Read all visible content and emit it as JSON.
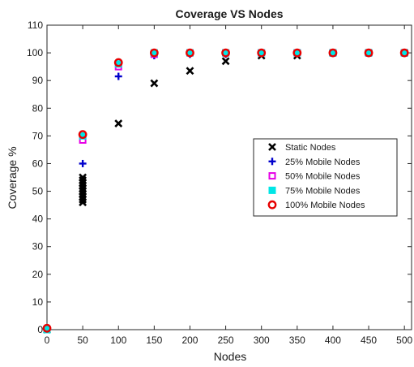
{
  "chart_data": {
    "type": "scatter",
    "title": "Coverage VS Nodes",
    "xlabel": "Nodes",
    "ylabel": "Coverage %",
    "xlim": [
      0,
      510
    ],
    "ylim": [
      0,
      110
    ],
    "xticks": [
      0,
      50,
      100,
      150,
      200,
      250,
      300,
      350,
      400,
      450,
      500
    ],
    "yticks": [
      0,
      10,
      20,
      30,
      40,
      50,
      60,
      70,
      80,
      90,
      100,
      110
    ],
    "grid": false,
    "legend_position": "center-right",
    "series": [
      {
        "name": "Static Nodes",
        "marker": "x",
        "color": "#000000",
        "points": [
          [
            0,
            0
          ],
          [
            50,
            46
          ],
          [
            50,
            47
          ],
          [
            50,
            48
          ],
          [
            50,
            49
          ],
          [
            50,
            50
          ],
          [
            50,
            51
          ],
          [
            50,
            52
          ],
          [
            50,
            53
          ],
          [
            50,
            54
          ],
          [
            50,
            55
          ],
          [
            100,
            74.5
          ],
          [
            150,
            89
          ],
          [
            200,
            93.5
          ],
          [
            250,
            97
          ],
          [
            300,
            99
          ],
          [
            350,
            99
          ],
          [
            400,
            100
          ],
          [
            450,
            100
          ],
          [
            500,
            100
          ]
        ]
      },
      {
        "name": "25%  Mobile Nodes",
        "marker": "plus",
        "color": "#0000cc",
        "points": [
          [
            0,
            0
          ],
          [
            50,
            60
          ],
          [
            100,
            91.5
          ],
          [
            150,
            99
          ],
          [
            200,
            99.5
          ],
          [
            250,
            99.5
          ],
          [
            300,
            100
          ],
          [
            350,
            100
          ],
          [
            400,
            100
          ],
          [
            450,
            100
          ],
          [
            500,
            100
          ]
        ]
      },
      {
        "name": "50%  Mobile Nodes",
        "marker": "square",
        "color": "#e600e6",
        "points": [
          [
            0,
            0
          ],
          [
            50,
            68.5
          ],
          [
            100,
            95
          ],
          [
            150,
            99.5
          ],
          [
            200,
            100
          ],
          [
            250,
            100
          ],
          [
            300,
            100
          ],
          [
            350,
            100
          ],
          [
            400,
            100
          ],
          [
            450,
            100
          ],
          [
            500,
            100
          ]
        ]
      },
      {
        "name": "75%  Mobile Nodes",
        "marker": "filled-square",
        "color": "#00e6e6",
        "points": [
          [
            0,
            0
          ],
          [
            50,
            70
          ],
          [
            100,
            96
          ],
          [
            150,
            100
          ],
          [
            200,
            100
          ],
          [
            250,
            100
          ],
          [
            300,
            100
          ],
          [
            350,
            100
          ],
          [
            400,
            100
          ],
          [
            450,
            100
          ],
          [
            500,
            100
          ]
        ]
      },
      {
        "name": "100%  Mobile Nodes",
        "marker": "diamond",
        "color": "#e60000",
        "points": [
          [
            0,
            0.5
          ],
          [
            50,
            70.5
          ],
          [
            100,
            96.5
          ],
          [
            150,
            100
          ],
          [
            200,
            100
          ],
          [
            250,
            100
          ],
          [
            300,
            100
          ],
          [
            350,
            100
          ],
          [
            400,
            100
          ],
          [
            450,
            100
          ],
          [
            500,
            100
          ]
        ]
      }
    ]
  }
}
